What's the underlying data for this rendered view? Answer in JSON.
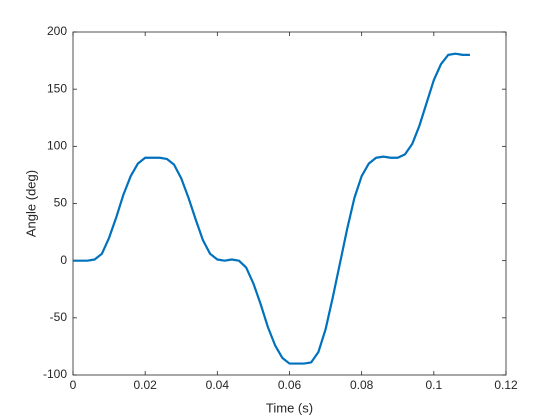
{
  "chart_data": {
    "type": "line",
    "xlabel": "Time (s)",
    "ylabel": "Angle (deg)",
    "x": [
      0,
      0.002,
      0.004,
      0.006,
      0.008,
      0.01,
      0.012,
      0.014,
      0.016,
      0.018,
      0.02,
      0.022,
      0.024,
      0.026,
      0.028,
      0.03,
      0.032,
      0.034,
      0.036,
      0.038,
      0.04,
      0.042,
      0.044,
      0.046,
      0.048,
      0.05,
      0.052,
      0.054,
      0.056,
      0.058,
      0.06,
      0.062,
      0.064,
      0.066,
      0.068,
      0.07,
      0.072,
      0.074,
      0.076,
      0.078,
      0.08,
      0.082,
      0.084,
      0.086,
      0.088,
      0.09,
      0.092,
      0.094,
      0.096,
      0.098,
      0.1,
      0.102,
      0.104,
      0.106,
      0.108,
      0.11
    ],
    "values": [
      0,
      0,
      0,
      1,
      6,
      20,
      38,
      58,
      74,
      85,
      90,
      90,
      90,
      89,
      84,
      72,
      55,
      36,
      18,
      6,
      1,
      0,
      1,
      0,
      -6,
      -20,
      -38,
      -58,
      -74,
      -85,
      -90,
      -90,
      -90,
      -89,
      -80,
      -60,
      -32,
      -2,
      28,
      55,
      74,
      85,
      90,
      91,
      90,
      90,
      93,
      102,
      118,
      138,
      158,
      172,
      180,
      181,
      180,
      180
    ],
    "color": "#0072bd",
    "xlim": [
      0,
      0.12
    ],
    "xticks": [
      0,
      0.02,
      0.04,
      0.06,
      0.08,
      0.1,
      0.12
    ],
    "ylim": [
      -100,
      200
    ],
    "yticks": [
      -100,
      -50,
      0,
      50,
      100,
      150,
      200
    ]
  }
}
